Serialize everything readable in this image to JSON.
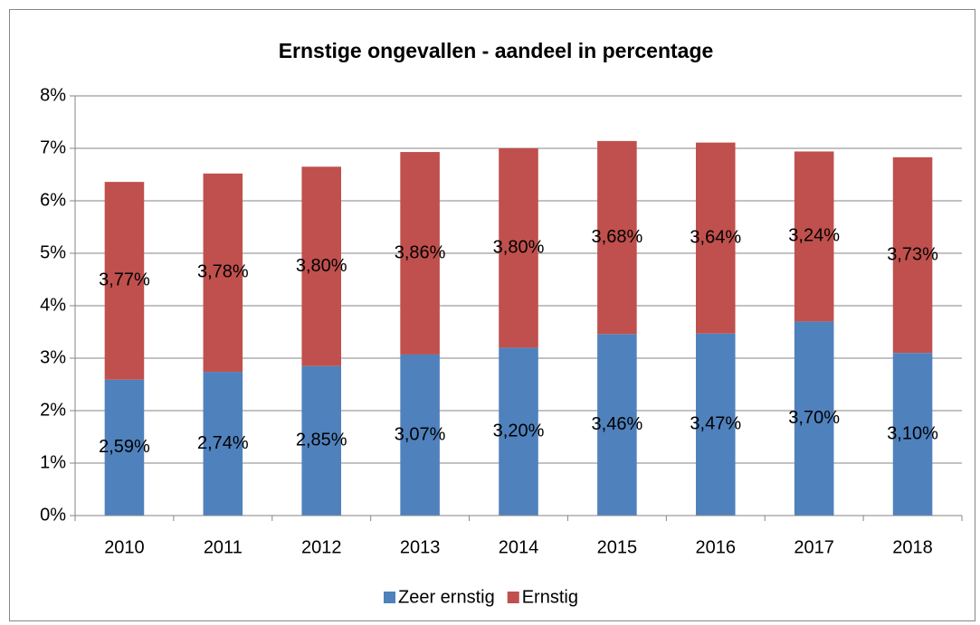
{
  "chart_data": {
    "type": "stacked_bar",
    "title": "Ernstige ongevallen - aandeel in percentage",
    "categories": [
      "2010",
      "2011",
      "2012",
      "2013",
      "2014",
      "2015",
      "2016",
      "2017",
      "2018"
    ],
    "series": [
      {
        "name": "Zeer ernstig",
        "color": "#4f81bd",
        "values": [
          2.59,
          2.74,
          2.85,
          3.07,
          3.2,
          3.46,
          3.47,
          3.7,
          3.1
        ],
        "value_labels": [
          "2,59%",
          "2,74%",
          "2,85%",
          "3,07%",
          "3,20%",
          "3,46%",
          "3,47%",
          "3,70%",
          "3,10%"
        ]
      },
      {
        "name": "Ernstig",
        "color": "#c0504d",
        "values": [
          3.77,
          3.78,
          3.8,
          3.86,
          3.8,
          3.68,
          3.64,
          3.24,
          3.73
        ],
        "value_labels": [
          "3,77%",
          "3,78%",
          "3,80%",
          "3,86%",
          "3,80%",
          "3,68%",
          "3,64%",
          "3,24%",
          "3,73%"
        ]
      }
    ],
    "ylim": [
      0,
      8
    ],
    "yticks": [
      {
        "value": 0,
        "label": "0%"
      },
      {
        "value": 1,
        "label": "1%"
      },
      {
        "value": 2,
        "label": "2%"
      },
      {
        "value": 3,
        "label": "3%"
      },
      {
        "value": 4,
        "label": "4%"
      },
      {
        "value": 5,
        "label": "5%"
      },
      {
        "value": 6,
        "label": "6%"
      },
      {
        "value": 7,
        "label": "7%"
      },
      {
        "value": 8,
        "label": "8%"
      }
    ],
    "grid": true,
    "legend": "bottom"
  }
}
